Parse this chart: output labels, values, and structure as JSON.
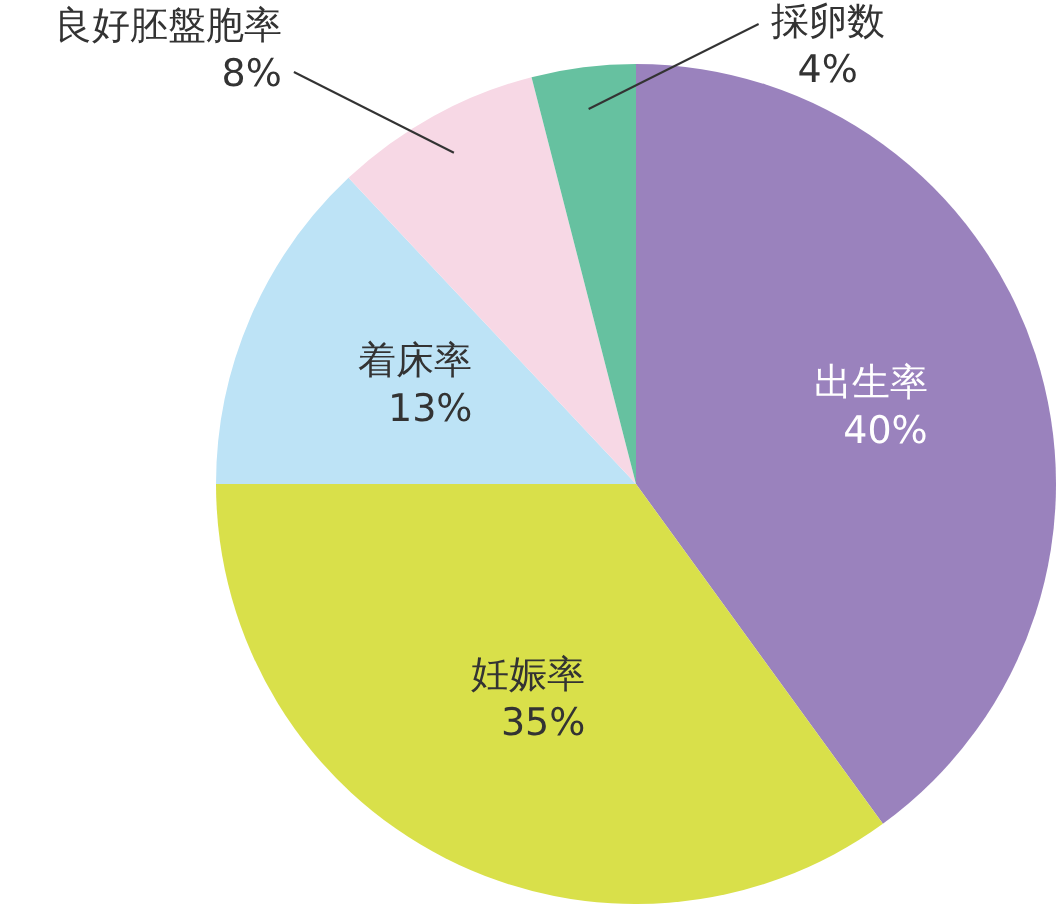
{
  "chart_data": {
    "type": "pie",
    "categories": [
      "出生率",
      "妊娠率",
      "着床率",
      "良好胚盤胞率",
      "採卵数"
    ],
    "values": [
      40,
      35,
      13,
      8,
      4
    ],
    "colors": [
      "#9a82bd",
      "#d9e04a",
      "#bde3f6",
      "#f7d8e5",
      "#66c1a0"
    ],
    "value_labels": [
      "40%",
      "35%",
      "13%",
      "8%",
      "4%"
    ],
    "legend": false
  }
}
